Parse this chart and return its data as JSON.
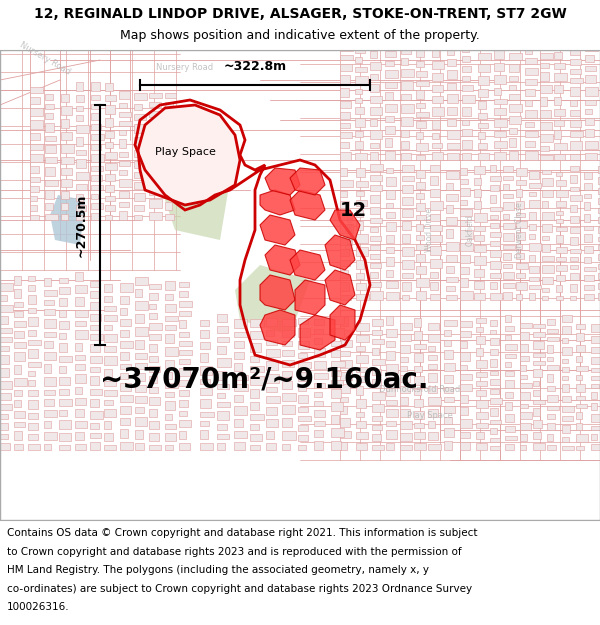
{
  "title_line1": "12, REGINALD LINDOP DRIVE, ALSAGER, STOKE-ON-TRENT, ST7 2GW",
  "title_line2": "Map shows position and indicative extent of the property.",
  "title_fontsize": 10,
  "subtitle_fontsize": 9,
  "area_text": "~37070m²/~9.160ac.",
  "area_fontsize": 20,
  "label_12": "12",
  "label_playspace": "Play Space",
  "dim_width": "~322.8m",
  "dim_height": "~270.5m",
  "footer_fontsize": 7.5,
  "footer_lines": [
    "Contains OS data © Crown copyright and database right 2021. This information is subject",
    "to Crown copyright and database rights 2023 and is reproduced with the permission of",
    "HM Land Registry. The polygons (including the associated geometry, namely x, y",
    "co-ordinates) are subject to Crown copyright and database rights 2023 Ordnance Survey",
    "100026316."
  ]
}
